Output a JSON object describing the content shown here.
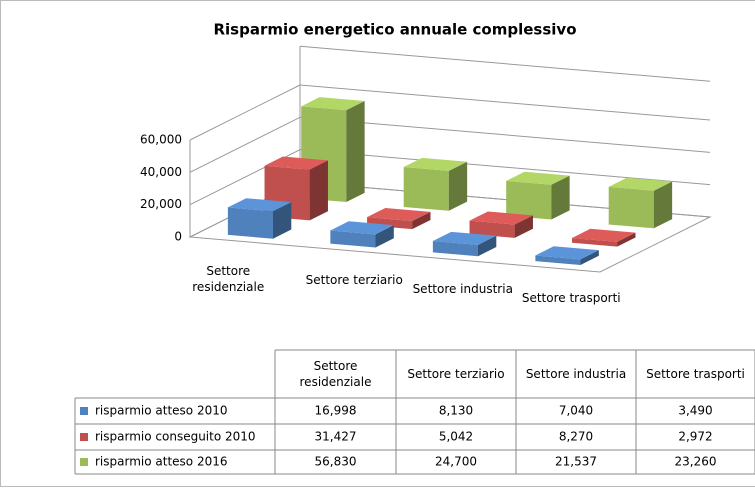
{
  "chart_data": {
    "type": "bar3d",
    "title": "Risparmio energetico annuale complessivo",
    "categories": [
      "Settore residenziale",
      "Settore terziario",
      "Settore industria",
      "Settore trasporti"
    ],
    "series": [
      {
        "name": "risparmio atteso 2010",
        "color": "#4f81bd",
        "values": [
          16998,
          8130,
          7040,
          3490
        ],
        "value_labels": [
          "16,998",
          "8,130",
          "7,040",
          "3,490"
        ]
      },
      {
        "name": "risparmio conseguito 2010",
        "color": "#c0504d",
        "values": [
          31427,
          5042,
          8270,
          2972
        ],
        "value_labels": [
          "31,427",
          "5,042",
          "8,270",
          "2,972"
        ]
      },
      {
        "name": "risparmio atteso 2016",
        "color": "#9bbb59",
        "values": [
          56830,
          24700,
          21537,
          23260
        ],
        "value_labels": [
          "56,830",
          "24,700",
          "21,537",
          "23,260"
        ]
      }
    ],
    "ylim": [
      0,
      60000
    ],
    "yticks": [
      0,
      {
        "value": 20000,
        "label": "20,000"
      },
      {
        "value": 40000,
        "label": "40,000"
      },
      {
        "value": 60000,
        "label": "60,000"
      }
    ],
    "grid": true
  }
}
